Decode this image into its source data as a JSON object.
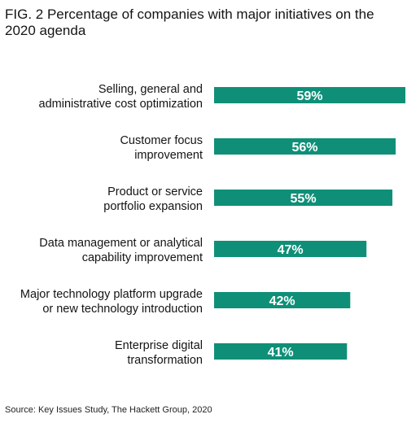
{
  "chart_data": {
    "type": "bar",
    "orientation": "horizontal",
    "title": "FIG. 2 Percentage of companies with major initiatives on the 2020 agenda",
    "categories": [
      [
        "Selling, general and",
        "administrative cost optimization"
      ],
      [
        "Customer focus",
        "improvement"
      ],
      [
        "Product or service",
        "portfolio expansion"
      ],
      [
        "Data management or analytical",
        "capability improvement"
      ],
      [
        "Major technology platform upgrade",
        "or new technology introduction"
      ],
      [
        "Enterprise digital",
        "transformation"
      ]
    ],
    "values": [
      59,
      56,
      55,
      47,
      42,
      41
    ],
    "labels": [
      "59%",
      "56%",
      "55%",
      "47%",
      "42%",
      "41%"
    ],
    "unit": "%",
    "xlim": [
      0,
      59
    ],
    "grid": false,
    "legend": "none",
    "bar_color": "#0f8f78",
    "label_color": "#ffffff"
  },
  "source": "Source: Key Issues Study, The Hackett Group, 2020"
}
